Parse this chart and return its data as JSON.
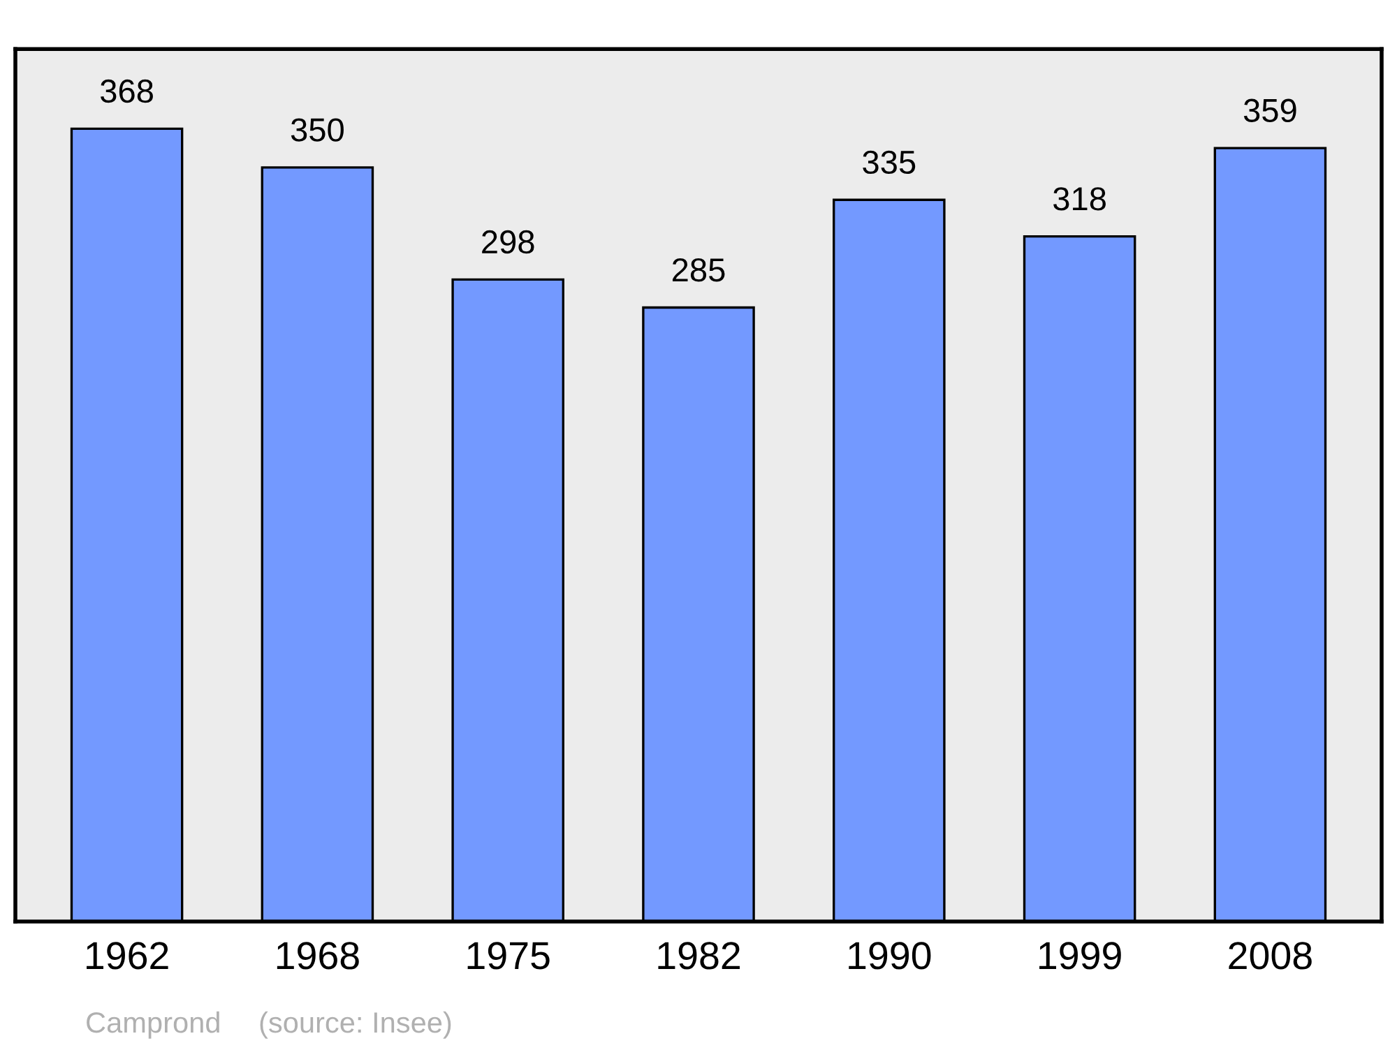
{
  "chart_data": {
    "type": "bar",
    "categories": [
      "1962",
      "1968",
      "1975",
      "1982",
      "1990",
      "1999",
      "2008"
    ],
    "values": [
      368,
      350,
      298,
      285,
      335,
      318,
      359
    ],
    "color": "#7399ff",
    "ylim": [
      0,
      405
    ],
    "data_labels": true,
    "tick_labels": "x",
    "grid": false,
    "legend": false,
    "annotations": [
      "Camprond",
      "(source: Insee)"
    ]
  }
}
